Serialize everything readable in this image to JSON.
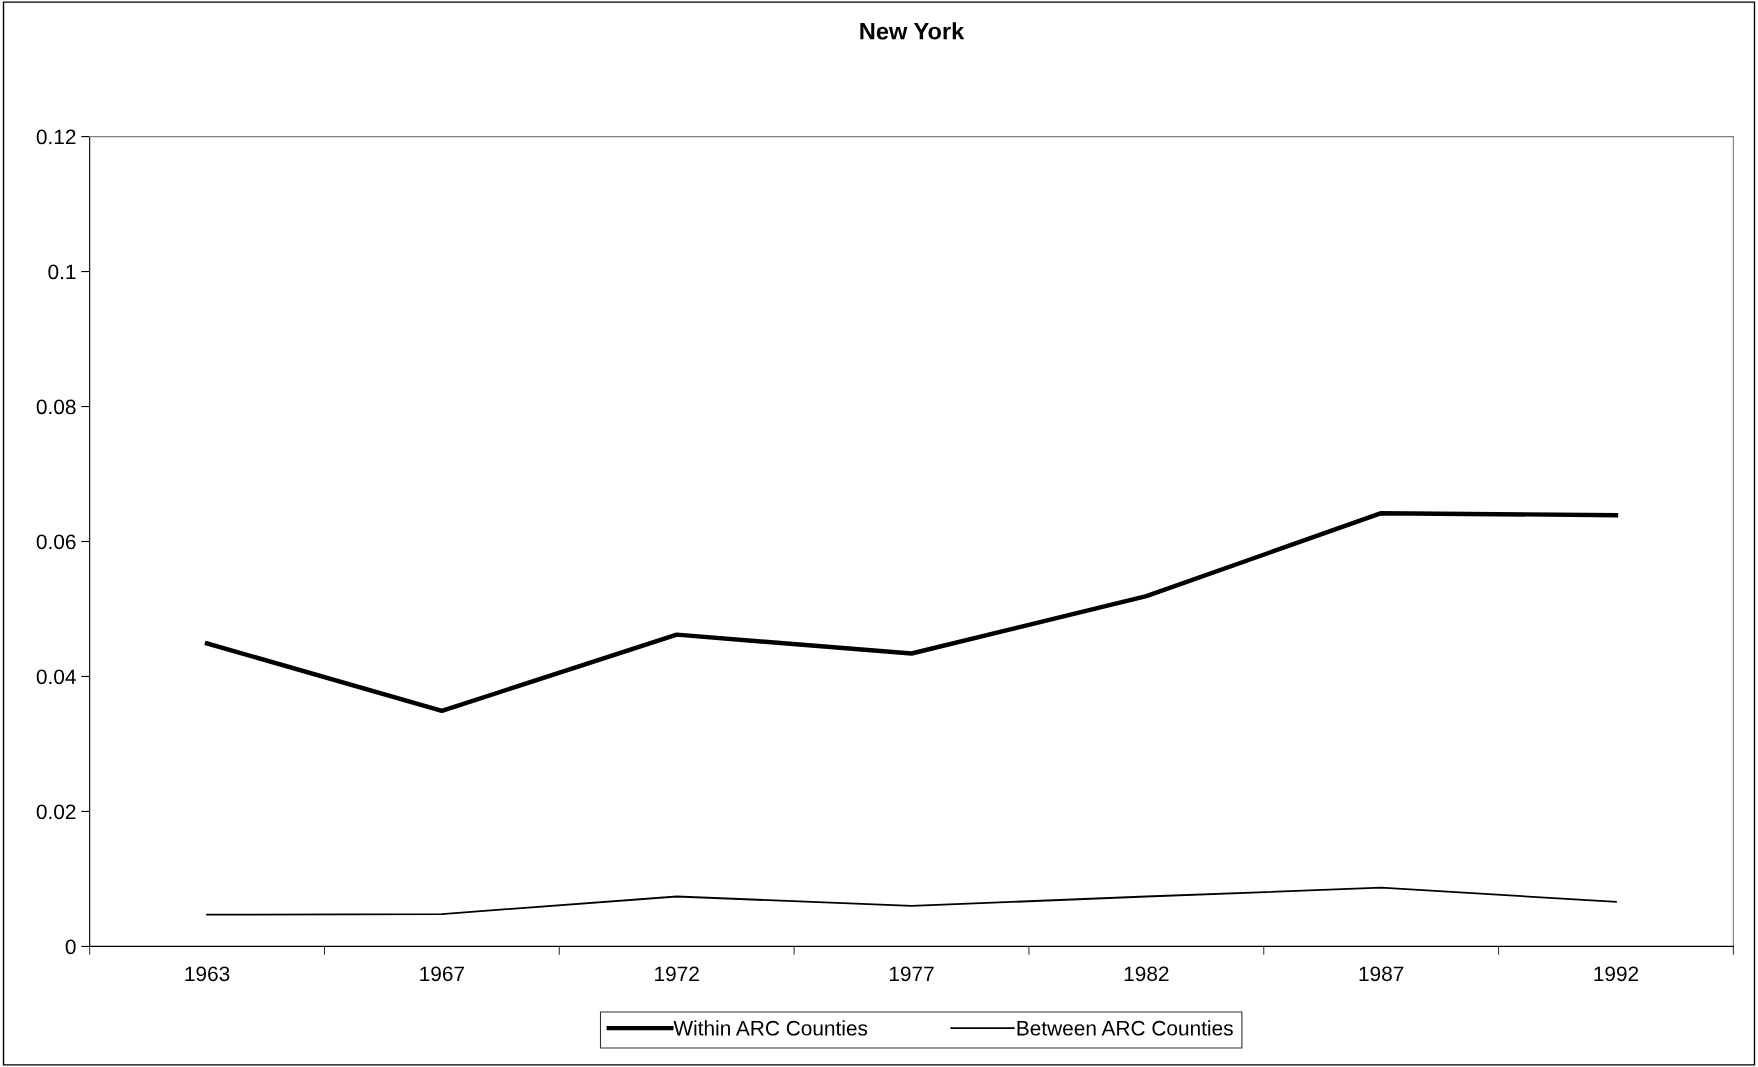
{
  "chart_data": {
    "type": "line",
    "title": "New York",
    "categories": [
      "1963",
      "1967",
      "1972",
      "1977",
      "1982",
      "1987",
      "1992"
    ],
    "series": [
      {
        "name": "Within ARC Counties",
        "color": "#000000",
        "values": [
          0.0449,
          0.0349,
          0.0462,
          0.0434,
          0.0519,
          0.0642,
          0.0639
        ]
      },
      {
        "name": "Between ARC Counties",
        "color": "#000000",
        "values": [
          0.0047,
          0.0048,
          0.0074,
          0.006,
          0.0074,
          0.0087,
          0.0066
        ]
      }
    ],
    "ylim": [
      0,
      0.12
    ],
    "yticks": [
      {
        "value": 0,
        "label": "0"
      },
      {
        "value": 0.02,
        "label": "0.02"
      },
      {
        "value": 0.04,
        "label": "0.04"
      },
      {
        "value": 0.06,
        "label": "0.06"
      },
      {
        "value": 0.08,
        "label": "0.08"
      },
      {
        "value": 0.1,
        "label": "0.1"
      },
      {
        "value": 0.12,
        "label": "0.12"
      }
    ],
    "grid": false,
    "legend": "bottom",
    "marker": "none",
    "line_style": "solid"
  }
}
